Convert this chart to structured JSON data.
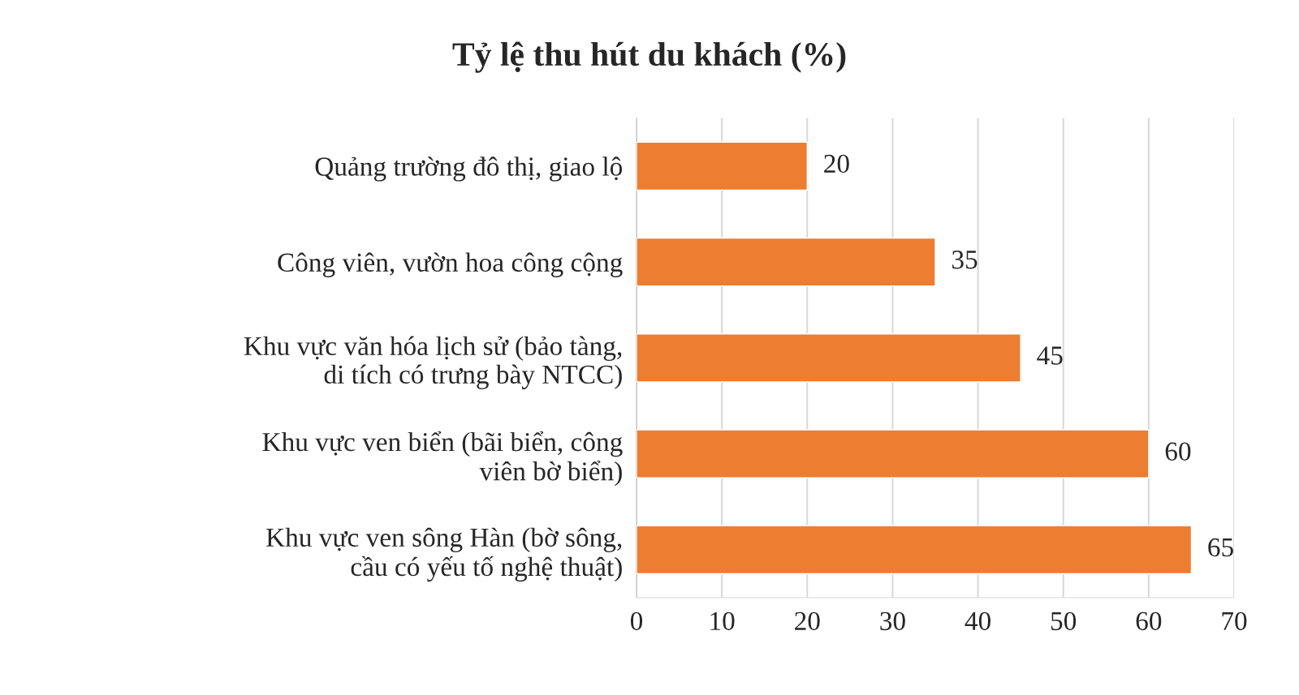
{
  "chart_data": {
    "type": "bar",
    "orientation": "horizontal",
    "title": "Tỷ lệ thu hút du khách (%)",
    "categories": [
      "Quảng trường đô thị, giao lộ",
      "Công viên, vườn hoa công cộng",
      "Khu vực văn hóa lịch sử (bảo tàng,\ndi tích có trưng bày NTCC)",
      "Khu vực ven biển (bãi biển, công\nviên bờ biển)",
      "Khu vực ven sông Hàn (bờ sông,\ncầu có yếu tố nghệ thuật)"
    ],
    "values": [
      20,
      35,
      45,
      60,
      65
    ],
    "color": "#ed7d31",
    "xlim": [
      0,
      70
    ],
    "xticks": [
      0,
      10,
      20,
      30,
      40,
      50,
      60,
      70
    ],
    "grid": "x",
    "data_labels": true
  }
}
